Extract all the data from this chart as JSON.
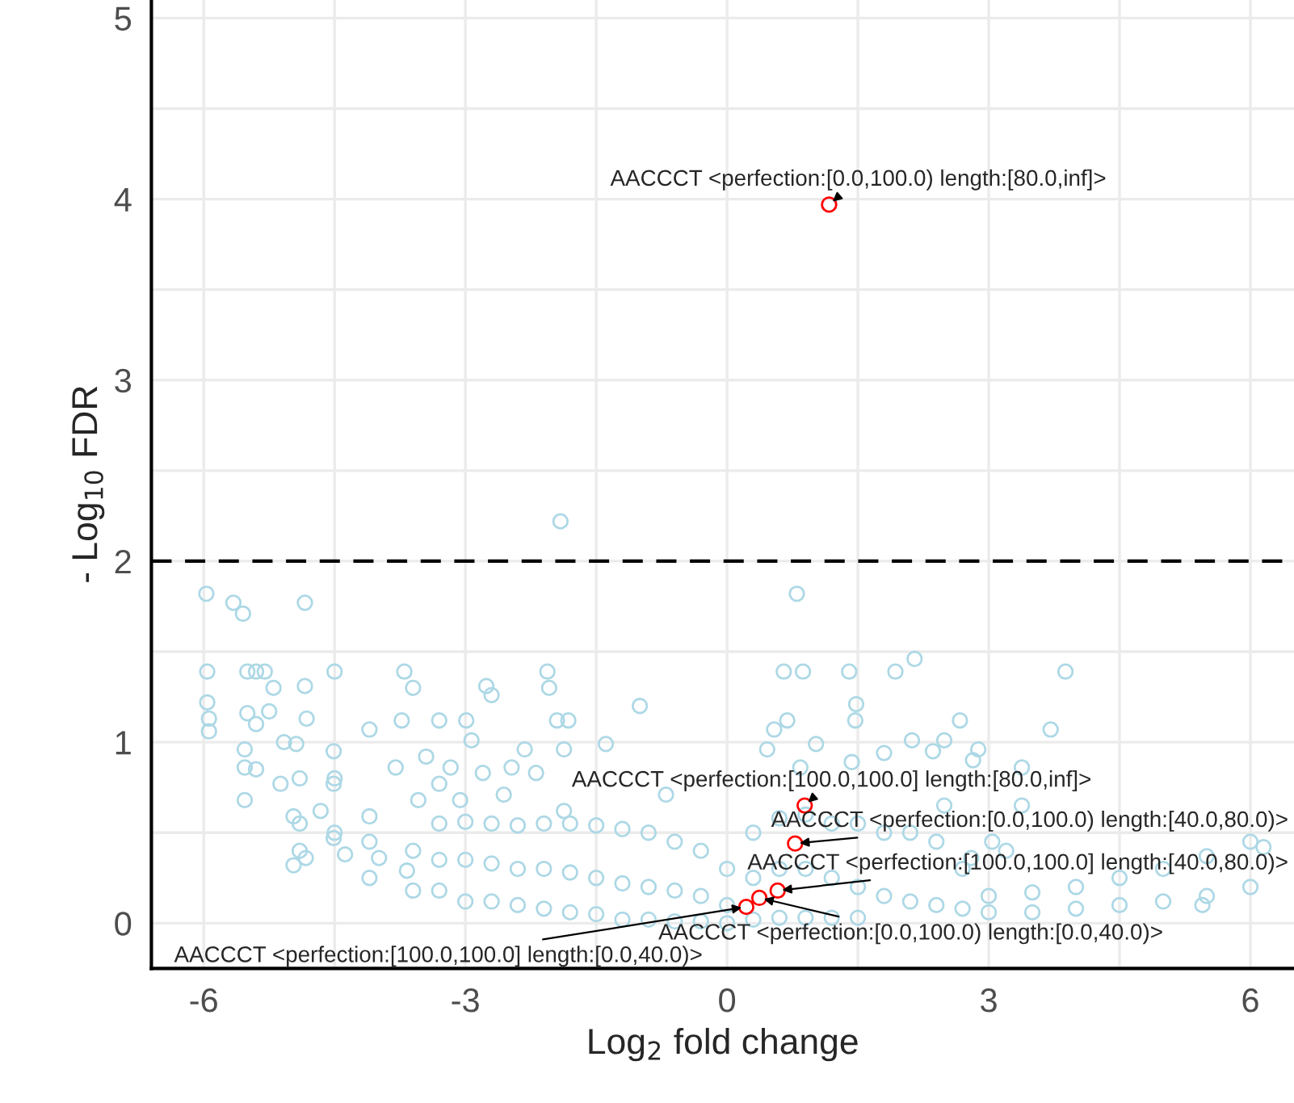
{
  "chart_data": {
    "type": "scatter",
    "xlabel": "Log$_{2}$ fold change",
    "ylabel": "- Log$_{10}$ FDR",
    "xlim": [
      -6.6,
      6.5
    ],
    "xticks": [
      -6,
      -3,
      0,
      3,
      6
    ],
    "ylim": [
      -0.25,
      5.1
    ],
    "yticks": [
      0,
      1,
      2,
      3,
      4,
      5
    ],
    "grid": true,
    "marker": "circle",
    "legend": false,
    "ref_lines": [
      {
        "axis": "y",
        "value": 2,
        "color": "#000000",
        "line_style": "dashed"
      }
    ],
    "series": [
      {
        "color": "#add8e6",
        "x": [
          -1.91,
          -5.97,
          -5.66,
          -5.55,
          -4.84,
          -5.96,
          -5.5,
          -5.4,
          -5.3,
          -5.2,
          -4.84,
          -4.5,
          -3.7,
          -3.6,
          -2.76,
          -2.7,
          -2.06,
          -2.04,
          -1.0,
          -5.96,
          -5.94,
          -5.94,
          -5.5,
          -5.4,
          -5.25,
          -4.82,
          -5.08,
          -4.94,
          -5.53,
          -5.53,
          -5.4,
          -5.53,
          -5.12,
          -4.97,
          -4.97,
          -4.83,
          -4.51,
          -4.51,
          -4.66,
          -4.51,
          -4.38,
          -4.1,
          -4.1,
          -3.99,
          -3.73,
          -3.8,
          -3.45,
          -3.3,
          -2.99,
          -2.93,
          -3.17,
          -3.54,
          -3.67,
          -3.3,
          -2.32,
          -1.95,
          -1.82,
          -1.87,
          -1.39,
          -2.8,
          -2.47,
          -2.19,
          -3.06,
          -2.56,
          -1.87,
          -0.7,
          -4.9,
          -4.9,
          -4.9,
          -4.5,
          -4.5,
          -4.1,
          -4.1,
          -3.6,
          -3.6,
          -3.3,
          -3.3,
          -3.3,
          -3.0,
          -3.0,
          -3.0,
          -2.7,
          -2.7,
          -2.7,
          -2.4,
          -2.4,
          -2.4,
          -2.1,
          -2.1,
          -2.1,
          -1.8,
          -1.8,
          -1.8,
          -1.5,
          -1.5,
          -1.5,
          -1.2,
          -1.2,
          -1.2,
          -0.9,
          -0.9,
          -0.9,
          -0.6,
          -0.6,
          -0.6,
          -0.3,
          -0.3,
          -0.3,
          0.0,
          0.0,
          0.0,
          0.3,
          0.3,
          0.3,
          0.6,
          0.6,
          0.6,
          0.9,
          0.9,
          0.9,
          1.2,
          1.2,
          1.2,
          1.5,
          1.5,
          1.5,
          1.8,
          1.8,
          2.1,
          2.1,
          2.4,
          2.4,
          2.7,
          2.7,
          3.0,
          3.0,
          3.5,
          3.5,
          4.0,
          4.0,
          4.5,
          4.5,
          5.0,
          5.0,
          5.5,
          5.5,
          6.0,
          6.0,
          6.15,
          2.8,
          3.2,
          0.65,
          0.87,
          1.4,
          1.93,
          2.15,
          3.88,
          0.8,
          1.48,
          1.47,
          0.69,
          0.54,
          2.67,
          3.71,
          2.12,
          2.49,
          2.88,
          0.46,
          1.02,
          1.8,
          2.36,
          2.82,
          3.38,
          1.43,
          0.84,
          2.49,
          3.38,
          3.04,
          5.45
        ],
        "values": [
          2.22,
          1.82,
          1.77,
          1.71,
          1.77,
          1.39,
          1.39,
          1.39,
          1.39,
          1.3,
          1.31,
          1.39,
          1.39,
          1.3,
          1.31,
          1.26,
          1.39,
          1.3,
          1.2,
          1.22,
          1.13,
          1.06,
          1.16,
          1.1,
          1.17,
          1.13,
          1.0,
          0.99,
          0.96,
          0.86,
          0.85,
          0.68,
          0.77,
          0.59,
          0.32,
          0.36,
          0.95,
          0.77,
          0.62,
          0.47,
          0.38,
          1.07,
          0.59,
          0.36,
          1.12,
          0.86,
          0.92,
          1.12,
          1.12,
          1.01,
          0.86,
          0.68,
          0.29,
          0.77,
          0.96,
          1.12,
          1.12,
          0.96,
          0.99,
          0.83,
          0.86,
          0.83,
          0.68,
          0.71,
          0.62,
          0.71,
          0.8,
          0.55,
          0.4,
          0.8,
          0.5,
          0.45,
          0.25,
          0.4,
          0.18,
          0.55,
          0.35,
          0.18,
          0.56,
          0.35,
          0.12,
          0.55,
          0.33,
          0.12,
          0.54,
          0.3,
          0.1,
          0.55,
          0.3,
          0.08,
          0.55,
          0.28,
          0.06,
          0.54,
          0.25,
          0.05,
          0.52,
          0.22,
          0.02,
          0.5,
          0.2,
          0.02,
          0.45,
          0.18,
          0.01,
          0.4,
          0.15,
          0.01,
          0.3,
          0.1,
          0.0,
          0.5,
          0.25,
          0.02,
          0.58,
          0.3,
          0.03,
          0.6,
          0.3,
          0.03,
          0.55,
          0.25,
          0.03,
          0.55,
          0.2,
          0.03,
          0.5,
          0.15,
          0.5,
          0.12,
          0.45,
          0.1,
          0.3,
          0.08,
          0.15,
          0.06,
          0.17,
          0.06,
          0.2,
          0.08,
          0.25,
          0.1,
          0.3,
          0.12,
          0.37,
          0.15,
          0.45,
          0.2,
          0.42,
          0.36,
          0.4,
          1.39,
          1.39,
          1.39,
          1.39,
          1.46,
          1.39,
          1.82,
          1.21,
          1.12,
          1.12,
          1.07,
          1.12,
          1.07,
          1.01,
          1.01,
          0.96,
          0.96,
          0.99,
          0.94,
          0.95,
          0.9,
          0.86,
          0.89,
          0.86,
          0.65,
          0.65,
          0.45,
          0.1
        ]
      },
      {
        "color": "#ff0000",
        "x": [
          1.17,
          0.89,
          0.78,
          0.58,
          0.37,
          0.22
        ],
        "values": [
          3.97,
          0.65,
          0.44,
          0.18,
          0.14,
          0.09
        ]
      }
    ],
    "annotations": [
      {
        "text": "AACCCT <perfection:[0.0,100.0) length:[80.0,inf]>",
        "x": 1.17,
        "y": 3.97
      },
      {
        "text": "AACCCT <perfection:[100.0,100.0] length:[80.0,inf]>",
        "x": 0.89,
        "y": 0.65
      },
      {
        "text": "AACCCT <perfection:[0.0,100.0) length:[40.0,80.0)>",
        "x": 0.78,
        "y": 0.44
      },
      {
        "text": "AACCCT <perfection:[100.0,100.0] length:[40.0,80.0)>",
        "x": 0.58,
        "y": 0.18
      },
      {
        "text": "AACCCT <perfection:[0.0,100.0) length:[0.0,40.0)>",
        "x": 0.37,
        "y": 0.14
      },
      {
        "text": "AACCCT <perfection:[100.0,100.0] length:[0.0,40.0)>",
        "x": 0.22,
        "y": 0.09
      }
    ]
  }
}
